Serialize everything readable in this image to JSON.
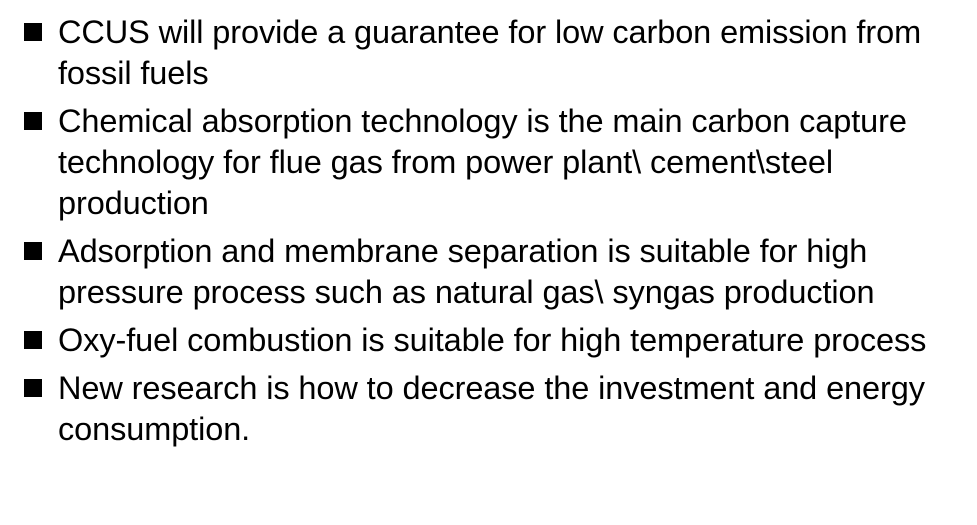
{
  "slide": {
    "bullets": [
      {
        "icon": "square-bullet-icon",
        "text": "CCUS will provide a guarantee for low carbon emission from fossil fuels"
      },
      {
        "icon": "square-bullet-icon",
        "text": "Chemical absorption technology is the main carbon capture technology for flue gas from power plant\\ cement\\steel production"
      },
      {
        "icon": "square-bullet-icon",
        "text": "Adsorption and membrane separation is suitable for high pressure process such as natural gas\\ syngas production"
      },
      {
        "icon": "square-bullet-icon",
        "text": "Oxy-fuel combustion is suitable for high temperature process"
      },
      {
        "icon": "square-bullet-icon",
        "text": "New research is how to decrease the investment and energy consumption."
      }
    ]
  }
}
